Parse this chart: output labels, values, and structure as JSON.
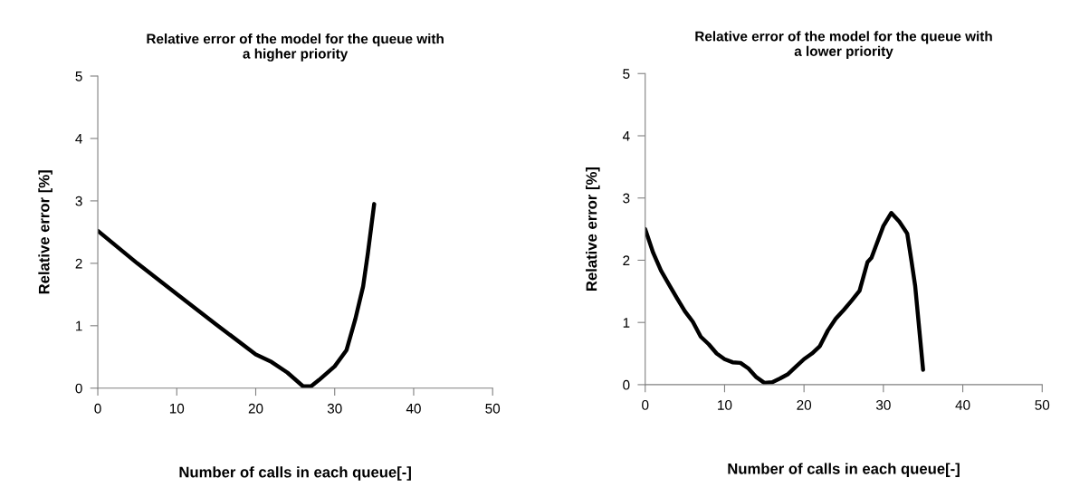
{
  "chart_data": [
    {
      "type": "line",
      "title": "Relative error of the model for the queue with\na higher priority",
      "xlabel": "Number of calls in each queue[-]",
      "ylabel": "Relative error [%]",
      "x": [
        0,
        5,
        10,
        15,
        20,
        22,
        24,
        26,
        27,
        28,
        30,
        31.5,
        32.6,
        33.6,
        34.2,
        35
      ],
      "series": [
        {
          "color": "#000000",
          "values": [
            2.52,
            2.0,
            1.51,
            1.02,
            0.54,
            0.42,
            0.25,
            0.03,
            0.03,
            0.13,
            0.35,
            0.61,
            1.1,
            1.63,
            2.16,
            2.95
          ]
        }
      ],
      "xlim": [
        0,
        50
      ],
      "xticks": [
        0,
        10,
        20,
        30,
        40,
        50
      ],
      "ylim": [
        0,
        5
      ],
      "yticks": [
        0,
        1,
        2,
        3,
        4,
        5
      ],
      "grid": false,
      "line_style": "solid",
      "marker": "none"
    },
    {
      "type": "line",
      "title": "Relative error of the model for the queue with\na lower priority",
      "xlabel": "Number of calls in each queue[-]",
      "ylabel": "Relative error [%]",
      "x": [
        0,
        1,
        2,
        3,
        4,
        5,
        6,
        7,
        8,
        9,
        10,
        11,
        12,
        13,
        14,
        15,
        16,
        17,
        18,
        19,
        20,
        21,
        22,
        23,
        24,
        25,
        26,
        27,
        28,
        28.5,
        29,
        30,
        31,
        32,
        33,
        33.5,
        34,
        35
      ],
      "series": [
        {
          "color": "#000000",
          "values": [
            2.5,
            2.12,
            1.83,
            1.61,
            1.39,
            1.18,
            1.01,
            0.77,
            0.65,
            0.5,
            0.41,
            0.36,
            0.35,
            0.26,
            0.12,
            0.03,
            0.04,
            0.1,
            0.17,
            0.29,
            0.41,
            0.5,
            0.62,
            0.87,
            1.06,
            1.2,
            1.35,
            1.51,
            1.97,
            2.04,
            2.21,
            2.55,
            2.76,
            2.62,
            2.43,
            2.02,
            1.59,
            0.24
          ]
        }
      ],
      "xlim": [
        0,
        50
      ],
      "xticks": [
        0,
        10,
        20,
        30,
        40,
        50
      ],
      "ylim": [
        0,
        5
      ],
      "yticks": [
        0,
        1,
        2,
        3,
        4,
        5
      ],
      "grid": false,
      "line_style": "solid",
      "marker": "none"
    }
  ]
}
